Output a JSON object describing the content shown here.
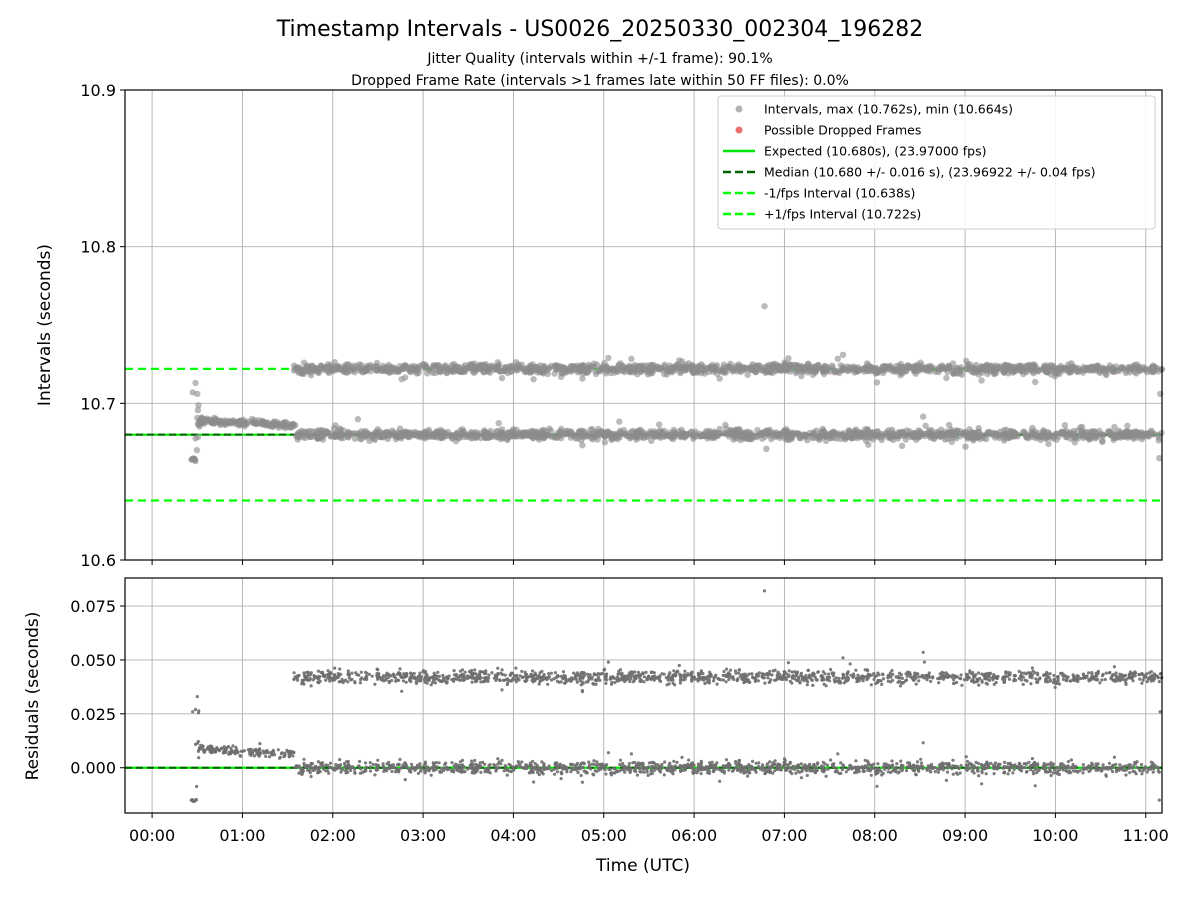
{
  "chart_data": [
    {
      "type": "scatter",
      "title": "Timestamp Intervals - US0026_20250330_002304_196282",
      "subtitle_lines": [
        "Jitter Quality (intervals within +/-1 frame): 90.1%",
        "Dropped Frame Rate (intervals >1 frames late within 50 FF files): 0.0%"
      ],
      "ylabel": "Intervals (seconds)",
      "xlabel": "",
      "xlim_hours": [
        -0.3,
        11.18
      ],
      "ylim": [
        10.6,
        10.9
      ],
      "y_ticks": [
        "10.6",
        "10.7",
        "10.8",
        "10.9"
      ],
      "grid": true,
      "legend_position": "top-right",
      "legend": [
        {
          "label": "Intervals, max (10.762s), min (10.664s)",
          "marker": "point",
          "color": "#999999"
        },
        {
          "label": "Possible Dropped Frames",
          "marker": "point",
          "color": "#e87070"
        },
        {
          "label": "Expected (10.680s), (23.97000 fps)",
          "marker": "line",
          "color": "#00e600"
        },
        {
          "label": "Median (10.680 +/- 0.016 s), (23.96922 +/- 0.04 fps)",
          "marker": "dashed",
          "color": "#006400"
        },
        {
          "label": "-1/fps Interval (10.638s)",
          "marker": "dashed",
          "color": "#00ff00"
        },
        {
          "label": "+1/fps Interval (10.722s)",
          "marker": "dashed",
          "color": "#00ff00"
        }
      ],
      "reference_lines": {
        "expected": 10.68,
        "median": 10.68,
        "minus_one_fps": 10.638,
        "plus_one_fps": 10.722
      },
      "series": [
        {
          "name": "Intervals, max (10.762s), min (10.664s)",
          "clusters": [
            {
              "x_start": 0.43,
              "x_end": 0.49,
              "y": 10.664,
              "spread": 0.0005
            },
            {
              "x_start": 0.48,
              "x_end": 0.52,
              "y": 10.69,
              "spread": 0.012
            },
            {
              "x_start": 0.52,
              "x_end": 1.57,
              "y": 10.689,
              "y_end": 10.686,
              "spread": 0.001
            },
            {
              "x_start": 1.57,
              "x_end": 11.18,
              "y": 10.68,
              "spread": 0.0015
            },
            {
              "x_start": 1.57,
              "x_end": 11.18,
              "y": 10.722,
              "spread": 0.0015
            }
          ],
          "outliers": [
            {
              "x": 0.45,
              "y": 10.707
            },
            {
              "x": 0.5,
              "y": 10.706
            },
            {
              "x": 0.48,
              "y": 10.713
            },
            {
              "x": 6.78,
              "y": 10.762
            },
            {
              "x": 11.16,
              "y": 10.706
            },
            {
              "x": 11.15,
              "y": 10.665
            },
            {
              "x": 6.8,
              "y": 10.671
            }
          ]
        }
      ]
    },
    {
      "type": "scatter",
      "ylabel": "Residuals (seconds)",
      "xlabel": "Time (UTC)",
      "xlim_hours": [
        -0.3,
        11.18
      ],
      "ylim": [
        -0.021,
        0.088
      ],
      "y_ticks": [
        "0.000",
        "0.025",
        "0.050",
        "0.075"
      ],
      "x_ticks": [
        "00:00",
        "01:00",
        "02:00",
        "03:00",
        "04:00",
        "05:00",
        "06:00",
        "07:00",
        "08:00",
        "09:00",
        "10:00",
        "11:00"
      ],
      "grid": true,
      "reference_lines": {
        "zero": 0.0
      },
      "series": [
        {
          "name": "Residuals",
          "clusters": [
            {
              "x_start": 0.43,
              "x_end": 0.49,
              "y": -0.015,
              "spread": 0.0005
            },
            {
              "x_start": 0.48,
              "x_end": 0.52,
              "y": 0.01,
              "spread": 0.012
            },
            {
              "x_start": 0.52,
              "x_end": 1.57,
              "y": 0.009,
              "y_end": 0.006,
              "spread": 0.001
            },
            {
              "x_start": 1.57,
              "x_end": 11.18,
              "y": 0.0,
              "spread": 0.0015
            },
            {
              "x_start": 1.57,
              "x_end": 11.18,
              "y": 0.042,
              "spread": 0.0015
            }
          ],
          "outliers": [
            {
              "x": 0.45,
              "y": 0.026
            },
            {
              "x": 0.48,
              "y": 0.027
            },
            {
              "x": 0.5,
              "y": 0.033
            },
            {
              "x": 6.78,
              "y": 0.082
            },
            {
              "x": 11.16,
              "y": 0.026
            },
            {
              "x": 11.15,
              "y": -0.015
            },
            {
              "x": 8.55,
              "y": 0.049
            }
          ]
        }
      ]
    }
  ]
}
